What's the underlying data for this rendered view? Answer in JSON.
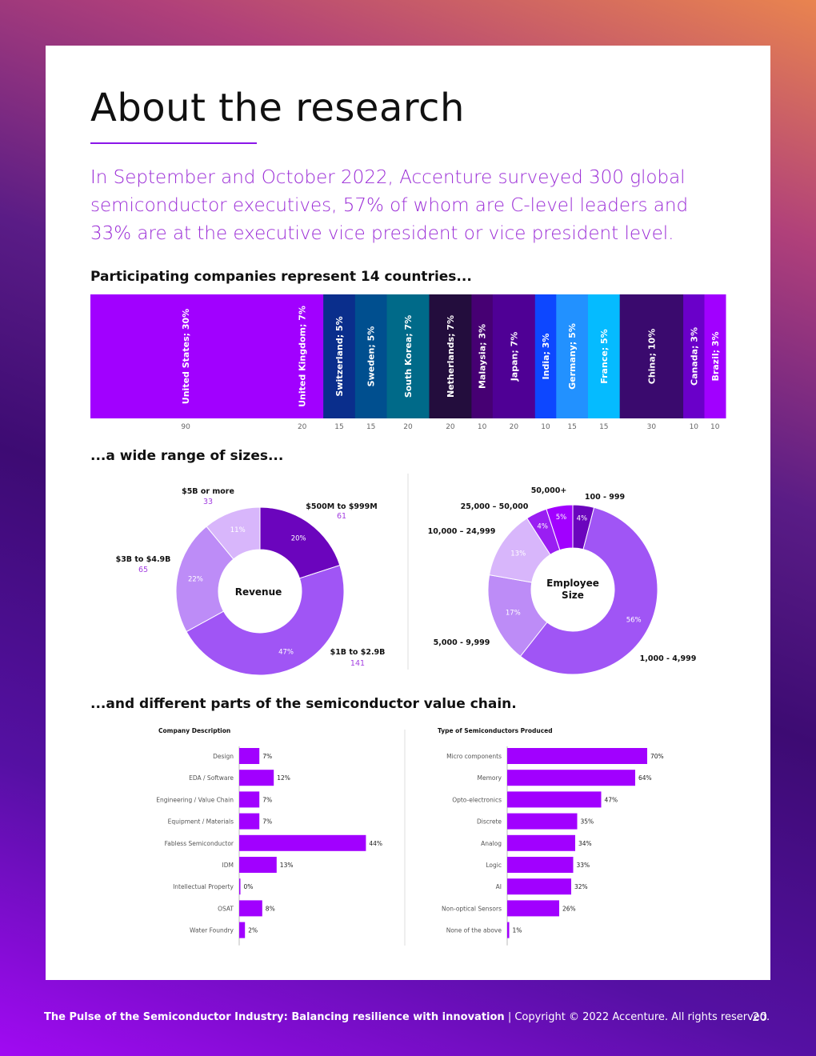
{
  "title": "About the research",
  "intro": "In September and October 2022, Accenture surveyed 300 global semiconductor executives, 57% of whom are C-level leaders and 33% are at the executive vice president or vice president level.",
  "sections": {
    "countries": "Participating companies represent 14 countries...",
    "sizes": "...a wide range of sizes...",
    "value_chain": "...and different parts of the semiconductor value chain."
  },
  "footer": {
    "title": "The Pulse of the Semiconductor Industry: Balancing resilience with innovation",
    "copyright": " | Copyright © 2022 Accenture. All rights reserved.",
    "page": "20"
  },
  "chart_data": [
    {
      "type": "bar",
      "orientation": "stacked-horizontal",
      "categories": [
        "United States; 30%",
        "United Kingdom; 7%",
        "Switzerland; 5%",
        "Sweden; 5%",
        "South Korea; 7%",
        "Netherlands; 7%",
        "Malaysia; 3%",
        "Japan; 7%",
        "India; 3%",
        "Germany; 5%",
        "France; 5%",
        "China; 10%",
        "Canada; 3%",
        "Brazil; 3%"
      ],
      "values": [
        90,
        20,
        15,
        15,
        20,
        20,
        10,
        20,
        10,
        15,
        15,
        30,
        10,
        10
      ],
      "value_labels": [
        "90",
        "20",
        "15",
        "15",
        "20",
        "20",
        "10",
        "20",
        "10",
        "15",
        "15",
        "30",
        "10",
        "10"
      ],
      "colors": [
        "#a100ff",
        "#a100ff",
        "#0a2e8c",
        "#004f8f",
        "#006a89",
        "#230d3d",
        "#460073",
        "#4f0095",
        "#0d47ff",
        "#2291ff",
        "#05bbff",
        "#3a0a6e",
        "#6a00c9",
        "#a100ff"
      ]
    },
    {
      "type": "pie",
      "center_label": "Revenue",
      "slices": [
        {
          "label": "$500M to $999M",
          "count": "61",
          "value": 20,
          "pct": "20%",
          "color": "#6b05bd"
        },
        {
          "label": "$1B to $2.9B",
          "count": "141",
          "value": 47,
          "pct": "47%",
          "color": "#a055f5"
        },
        {
          "label": "$3B to $4.9B",
          "count": "65",
          "value": 22,
          "pct": "22%",
          "color": "#bd8cf7"
        },
        {
          "label": "$5B or more",
          "count": "33",
          "value": 11,
          "pct": "11%",
          "color": "#d8b6fb"
        }
      ]
    },
    {
      "type": "pie",
      "center_label_1": "Employee",
      "center_label_2": "Size",
      "slices": [
        {
          "label": "100 - 999",
          "value": 4,
          "pct": "4%",
          "color": "#6b05bd"
        },
        {
          "label": "1,000 - 4,999",
          "value": 56,
          "pct": "56%",
          "color": "#a055f5"
        },
        {
          "label": "5,000 - 9,999",
          "value": 17,
          "pct": "17%",
          "color": "#bd8cf7"
        },
        {
          "label": "10,000 – 24,999",
          "value": 13,
          "pct": "13%",
          "color": "#d8b6fb"
        },
        {
          "label": "25,000 – 50,000",
          "value": 4,
          "pct": "4%",
          "color": "#9a1ef2"
        },
        {
          "label": "50,000+",
          "value": 5,
          "pct": "5%",
          "color": "#a100ff"
        }
      ]
    },
    {
      "type": "bar",
      "orientation": "horizontal",
      "title": "Company Description",
      "categories": [
        "Design",
        "EDA / Software",
        "Engineering / Value Chain",
        "Equipment / Materials",
        "Fabless Semiconductor",
        "IDM",
        "Intellectual Property",
        "OSAT",
        "Water Foundry"
      ],
      "values": [
        7,
        12,
        7,
        7,
        44,
        13,
        0,
        8,
        2
      ],
      "value_labels": [
        "7%",
        "12%",
        "7%",
        "7%",
        "44%",
        "13%",
        "0%",
        "8%",
        "2%"
      ],
      "color": "#a100ff"
    },
    {
      "type": "bar",
      "orientation": "horizontal",
      "title": "Type of Semiconductors  Produced",
      "categories": [
        "Micro components",
        "Memory",
        "Opto-electronics",
        "Discrete",
        "Analog",
        "Logic",
        "AI",
        "Non-optical Sensors",
        "None of the above"
      ],
      "values": [
        70,
        64,
        47,
        35,
        34,
        33,
        32,
        26,
        1
      ],
      "value_labels": [
        "70%",
        "64%",
        "47%",
        "35%",
        "34%",
        "33%",
        "32%",
        "26%",
        "1%"
      ],
      "color": "#a100ff"
    }
  ]
}
